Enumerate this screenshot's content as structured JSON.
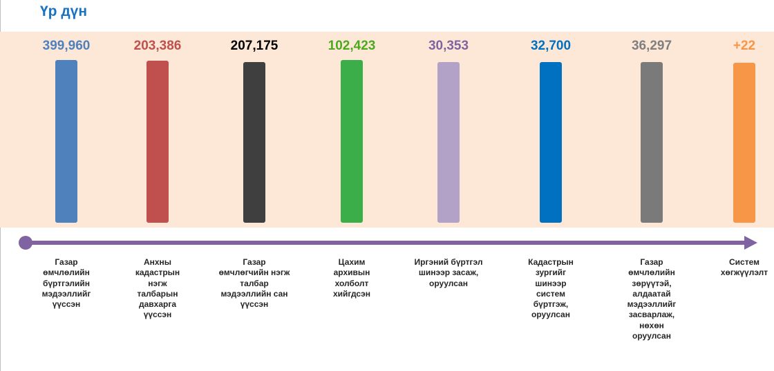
{
  "title": "Үр дүн",
  "chart_data": {
    "type": "bar",
    "title": "Үр дүн",
    "categories": [
      "Газар өмчлөлийн бүртгэлийн мэдээллийг үүссэн",
      "Анхны кадастрын нэгж талбарын давхарга үүссэн",
      "Газар өмчлөгчийн нэгж талбар мэдээллийн сан үүссэн",
      "Цахим архивын холболт хийгдсэн",
      "Иргэний бүртгэл шинээр засаж, оруулсан",
      "Кадастрын зургийг шинээр систем бүртгэж, оруулсан",
      "Газар өмчлөлийн зөрүүтэй, алдаатай мэдээллийг засварлаж, нөхөн оруулсан",
      "Систем хөгжүүлэлт"
    ],
    "series": [
      {
        "name": "Үр дүн",
        "values": [
          399960,
          203386,
          207175,
          102423,
          30353,
          32700,
          36297,
          22
        ],
        "value_labels": [
          "399,960",
          "203,386",
          "207,175",
          "102,423",
          "30,353",
          "32,700",
          "36,297",
          "+22"
        ],
        "colors": [
          "#4f81bd",
          "#c0504d",
          "#3f3f3f",
          "#3cae49",
          "#b3a2c7",
          "#0070c0",
          "#7a7a7a",
          "#f79646"
        ],
        "label_colors": [
          "#4f81bd",
          "#c0504d",
          "#000000",
          "#4aa91c",
          "#8064a2",
          "#0070c0",
          "#7f7f7f",
          "#f79646"
        ]
      }
    ],
    "label_lines": [
      [
        "Газар",
        "өмчлөлийн",
        "бүртгэлийн",
        "мэдээллийг",
        "үүссэн"
      ],
      [
        "Анхны",
        "кадастрын",
        "нэгж",
        "талбарын",
        "давхарга",
        "үүссэн"
      ],
      [
        "Газар",
        "өмчлөгчийн нэгж",
        "талбар",
        "мэдээллийн сан",
        "үүссэн"
      ],
      [
        "Цахим",
        "архивын",
        "холболт",
        "хийгдсэн"
      ],
      [
        "Иргэний бүртгэл",
        "шинээр засаж,",
        "оруулсан"
      ],
      [
        "Кадастрын",
        "зургийг",
        "шинээр",
        "систем",
        "бүртгэж,",
        "оруулсан"
      ],
      [
        "Газар",
        "өмчлөлийн",
        "зөрүүтэй,",
        "алдаатай",
        "мэдээллийг",
        "засварлаж,",
        "нөхөн",
        "оруулсан"
      ],
      [
        "Систем",
        "хөгжүүлэлт"
      ]
    ],
    "timeline_color": "#8064a2",
    "band_color": "#fde8d8"
  }
}
